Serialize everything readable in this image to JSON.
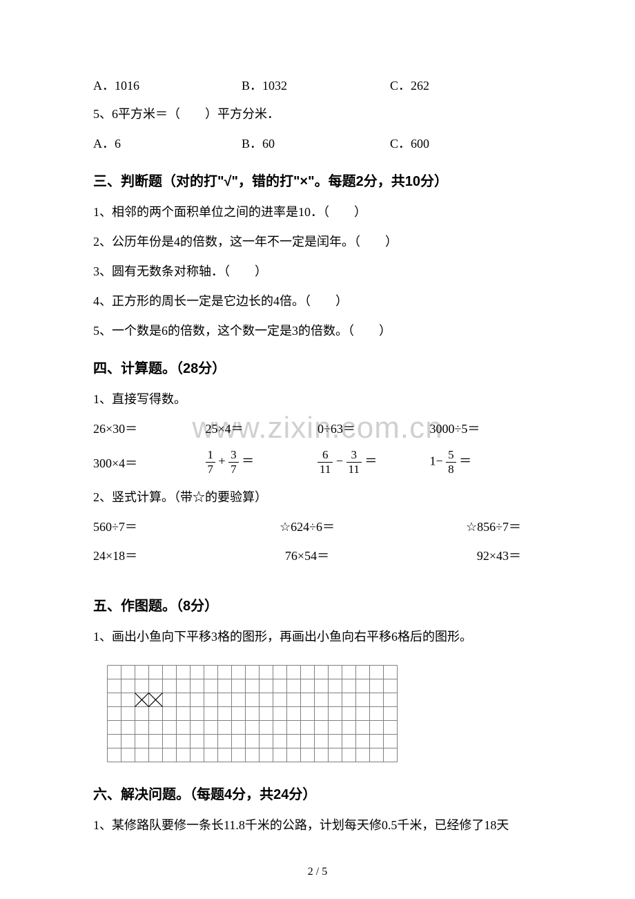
{
  "mc4": {
    "optA": "A．1016",
    "optB": "B．1032",
    "optC": "C．262"
  },
  "mc5": {
    "stem": "5、6平方米＝（　　）平方分米．",
    "optA": "A．6",
    "optB": "B．60",
    "optC": "C．600"
  },
  "sec3": {
    "title": "三、判断题（对的打\"√\"，错的打\"×\"。每题2分，共10分）",
    "q1": "1、相邻的两个面积单位之间的进率是10．（　　）",
    "q2": "2、公历年份是4的倍数，这一年不一定是闰年。（　　）",
    "q3": "3、圆有无数条对称轴．（　　）",
    "q4": "4、正方形的周长一定是它边长的4倍。（　　）",
    "q5": "5、一个数是6的倍数，这个数一定是3的倍数。（　　）"
  },
  "sec4": {
    "title": "四、计算题。（28分）",
    "sub1": "1、直接写得数。",
    "r1c1": "26×30＝",
    "r1c2": "25×4＝",
    "r1c3": "0÷63＝",
    "r1c4": "3000÷5＝",
    "r2c1": "300×4＝",
    "r2f1_pre": "",
    "r2f1_n1": "1",
    "r2f1_d1": "7",
    "r2f1_op": "+",
    "r2f1_n2": "3",
    "r2f1_d2": "7",
    "r2f1_eq": "＝",
    "r2f2_n1": "6",
    "r2f2_d1": "11",
    "r2f2_op": "−",
    "r2f2_n2": "3",
    "r2f2_d2": "11",
    "r2f2_eq": "＝",
    "r2f3_pre": "1−",
    "r2f3_n": "5",
    "r2f3_d": "8",
    "r2f3_eq": "＝",
    "sub2": "2、竖式计算。（带☆的要验算）",
    "r3c1": "560÷7＝",
    "r3c2": "☆624÷6＝",
    "r3c3": "☆856÷7＝",
    "r4c1": "24×18＝",
    "r4c2": "76×54＝",
    "r4c3": "92×43＝"
  },
  "sec5": {
    "title": "五、作图题。（8分）",
    "q1": "1、画出小鱼向下平移3格的图形，再画出小鱼向右平移6格后的图形。",
    "grid": {
      "cols": 21,
      "rows": 7,
      "cell": 20,
      "lineColor": "#808080",
      "lineWidth": 1
    }
  },
  "sec6": {
    "title": "六、解决问题。（每题4分，共24分）",
    "q1": "1、某修路队要修一条长11.8千米的公路，计划每天修0.5千米，已经修了18天"
  },
  "watermark": "www.zixin.com.cn",
  "pageNum": "2 / 5"
}
